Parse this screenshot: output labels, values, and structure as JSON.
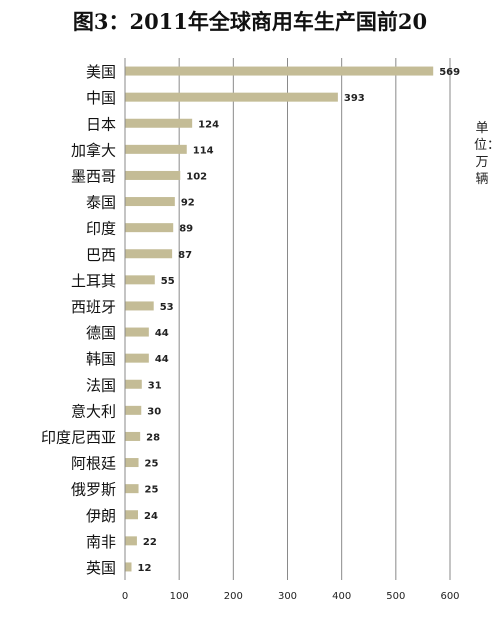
{
  "chart_data": {
    "type": "bar",
    "orientation": "horizontal",
    "title": "图3：2011年全球商用车生产国前20",
    "unit_label": "单位：万辆",
    "categories": [
      "美国",
      "中国",
      "日本",
      "加拿大",
      "墨西哥",
      "泰国",
      "印度",
      "巴西",
      "土耳其",
      "西班牙",
      "德国",
      "韩国",
      "法国",
      "意大利",
      "印度尼西亚",
      "阿根廷",
      "俄罗斯",
      "伊朗",
      "南非",
      "英国"
    ],
    "values": [
      569,
      393,
      124,
      114,
      102,
      92,
      89,
      87,
      55,
      53,
      44,
      44,
      31,
      30,
      28,
      25,
      25,
      24,
      22,
      12
    ],
    "xlim": [
      0,
      600
    ],
    "xticks": [
      0,
      100,
      200,
      300,
      400,
      500,
      600
    ],
    "bar_color": "#c4bc96",
    "grid": true
  }
}
